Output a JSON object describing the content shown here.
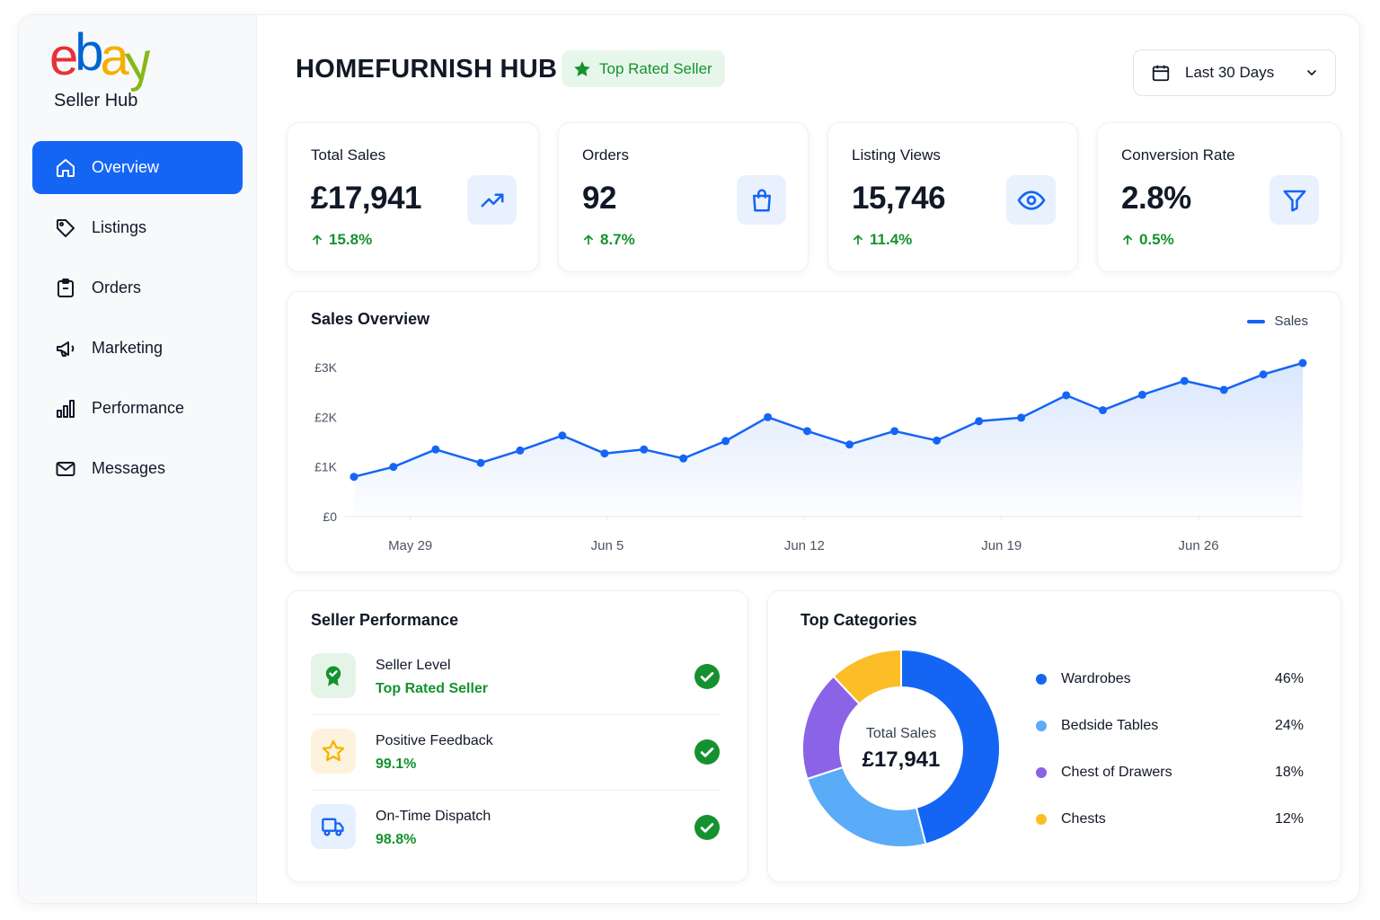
{
  "brand": {
    "logo_letters": [
      {
        "char": "e",
        "color": "#e53238"
      },
      {
        "char": "b",
        "color": "#0064d2"
      },
      {
        "char": "a",
        "color": "#f5af02"
      },
      {
        "char": "y",
        "color": "#86b817"
      }
    ],
    "hub_label": "Seller Hub"
  },
  "sidebar": {
    "items": [
      {
        "label": "Overview",
        "icon": "home-icon",
        "active": true
      },
      {
        "label": "Listings",
        "icon": "tag-icon"
      },
      {
        "label": "Orders",
        "icon": "clipboard-icon"
      },
      {
        "label": "Marketing",
        "icon": "megaphone-icon"
      },
      {
        "label": "Performance",
        "icon": "bar-chart-icon"
      },
      {
        "label": "Messages",
        "icon": "mail-icon"
      }
    ]
  },
  "header": {
    "title": "HOMEFURNISH HUB",
    "badge": "Top Rated Seller",
    "date_range": "Last 30 Days"
  },
  "kpis": [
    {
      "label": "Total Sales",
      "value": "£17,941",
      "change": "15.8%",
      "icon": "trending-up-icon"
    },
    {
      "label": "Orders",
      "value": "92",
      "change": "8.7%",
      "icon": "shopping-bag-icon"
    },
    {
      "label": "Listing Views",
      "value": "15,746",
      "change": "11.4%",
      "icon": "eye-icon"
    },
    {
      "label": "Conversion Rate",
      "value": "2.8%",
      "change": "0.5%",
      "icon": "filter-icon"
    }
  ],
  "sales_overview": {
    "title": "Sales Overview",
    "legend": "Sales"
  },
  "chart_data": {
    "type": "area",
    "series": [
      {
        "name": "Sales",
        "values": [
          800,
          1000,
          1350,
          1080,
          1330,
          1630,
          1270,
          1350,
          1170,
          1520,
          2000,
          1720,
          1450,
          1720,
          1530,
          1920,
          1990,
          2440,
          2140,
          2450,
          2730,
          2550,
          2860,
          3090
        ]
      }
    ],
    "x_positions_day": [
      0,
      1.4,
      2.9,
      4.5,
      5.9,
      7.4,
      8.9,
      10.3,
      11.7,
      13.2,
      14.7,
      16.1,
      17.6,
      19.2,
      20.7,
      22.2,
      23.7,
      25.3,
      26.6,
      28.0,
      29.5,
      30.9,
      32.3,
      33.7
    ],
    "xticks": [
      {
        "label": "May 29",
        "day": 2
      },
      {
        "label": "Jun 5",
        "day": 9
      },
      {
        "label": "Jun 12",
        "day": 16
      },
      {
        "label": "Jun 19",
        "day": 23
      },
      {
        "label": "Jun 26",
        "day": 30
      }
    ],
    "yticks": [
      {
        "label": "£0",
        "value": 0
      },
      {
        "label": "£1K",
        "value": 1000
      },
      {
        "label": "£2K",
        "value": 2000
      },
      {
        "label": "£3K",
        "value": 3000
      }
    ],
    "xlim": [
      0,
      33.7
    ],
    "ylim": [
      0,
      3000
    ],
    "color": "#1565f5",
    "grid": "horizontal"
  },
  "seller_performance": {
    "title": "Seller Performance",
    "rows": [
      {
        "name": "Seller Level",
        "value": "Top Rated Seller",
        "icon": "award-badge-icon",
        "tint": "#e4f5e8",
        "color": "#15922f"
      },
      {
        "name": "Positive Feedback",
        "value": "99.1%",
        "icon": "star-icon",
        "tint": "#fdf3dc",
        "color": "#f5b400"
      },
      {
        "name": "On-Time Dispatch",
        "value": "98.8%",
        "icon": "truck-icon",
        "tint": "#e7f0fe",
        "color": "#1565f5"
      }
    ]
  },
  "top_categories": {
    "title": "Top Categories",
    "center_label": "Total Sales",
    "center_value": "£17,941",
    "items": [
      {
        "name": "Wardrobes",
        "pct": "46%",
        "share": 46,
        "color": "#1565f5"
      },
      {
        "name": "Bedside Tables",
        "pct": "24%",
        "share": 24,
        "color": "#5aabf8"
      },
      {
        "name": "Chest of Drawers",
        "pct": "18%",
        "share": 18,
        "color": "#8b63e6"
      },
      {
        "name": "Chests",
        "pct": "12%",
        "share": 12,
        "color": "#fbbe26"
      }
    ]
  },
  "colors": {
    "accent": "#1565f5",
    "positive": "#15922f"
  }
}
